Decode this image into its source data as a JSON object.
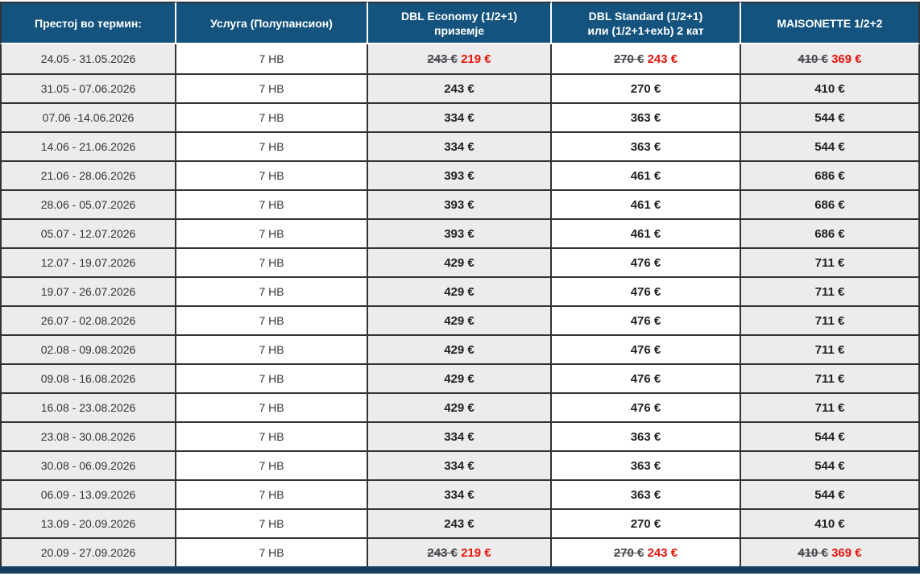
{
  "colors": {
    "header_bg": "#14537e",
    "header_text": "#ffffff",
    "col_alt_bg": "#ececec",
    "col_white_bg": "#ffffff",
    "border": "#333333",
    "date_text": "#333333",
    "price_text": "#222222",
    "old_price_text": "#45454d",
    "discount_price_text": "#e8140b",
    "bottom_bar": "#163e5e"
  },
  "table": {
    "header": {
      "col_term": "Престој во термин:",
      "col_service": "Услуга (Полупансион)",
      "col_economy_line1": "DBL Economy (1/2+1)",
      "col_economy_line2": "приземје",
      "col_standard_line1": "DBL Standard (1/2+1)",
      "col_standard_line2": "или (1/2+1+exb) 2 кат",
      "col_maisonette": "MAISONETTE  1/2+2"
    },
    "rows": [
      {
        "term": "24.05 - 31.05.2026",
        "service": "7 HB",
        "economy": {
          "old": "243 €",
          "new": "219 €"
        },
        "standard": {
          "old": "270 €",
          "new": "243 €"
        },
        "maisonette": {
          "old": "410 €",
          "new": "369 €"
        }
      },
      {
        "term": "31.05 - 07.06.2026",
        "service": "7 HB",
        "economy": "243 €",
        "standard": "270 €",
        "maisonette": "410 €"
      },
      {
        "term": "07.06 -14.06.2026",
        "service": "7 HB",
        "economy": "334 €",
        "standard": "363 €",
        "maisonette": "544 €"
      },
      {
        "term": "14.06 - 21.06.2026",
        "service": "7 HB",
        "economy": "334 €",
        "standard": "363 €",
        "maisonette": "544 €"
      },
      {
        "term": "21.06 - 28.06.2026",
        "service": "7 HB",
        "economy": "393 €",
        "standard": "461 €",
        "maisonette": "686 €"
      },
      {
        "term": "28.06 - 05.07.2026",
        "service": "7 HB",
        "economy": "393 €",
        "standard": "461 €",
        "maisonette": "686 €"
      },
      {
        "term": "05.07 - 12.07.2026",
        "service": "7 HB",
        "economy": "393 €",
        "standard": "461 €",
        "maisonette": "686 €"
      },
      {
        "term": "12.07 - 19.07.2026",
        "service": "7 HB",
        "economy": "429 €",
        "standard": "476 €",
        "maisonette": "711 €"
      },
      {
        "term": "19.07 - 26.07.2026",
        "service": "7 HB",
        "economy": "429 €",
        "standard": "476 €",
        "maisonette": "711 €"
      },
      {
        "term": "26.07 - 02.08.2026",
        "service": "7 HB",
        "economy": "429 €",
        "standard": "476 €",
        "maisonette": "711 €"
      },
      {
        "term": "02.08 - 09.08.2026",
        "service": "7 HB",
        "economy": "429 €",
        "standard": "476 €",
        "maisonette": "711 €"
      },
      {
        "term": "09.08 - 16.08.2026",
        "service": "7 HB",
        "economy": "429 €",
        "standard": "476 €",
        "maisonette": "711 €"
      },
      {
        "term": "16.08 - 23.08.2026",
        "service": "7 HB",
        "economy": "429 €",
        "standard": "476 €",
        "maisonette": "711 €"
      },
      {
        "term": "23.08 - 30.08.2026",
        "service": "7 HB",
        "economy": "334 €",
        "standard": "363 €",
        "maisonette": "544 €"
      },
      {
        "term": "30.08 - 06.09.2026",
        "service": "7 HB",
        "economy": "334 €",
        "standard": "363 €",
        "maisonette": "544 €"
      },
      {
        "term": "06.09 - 13.09.2026",
        "service": "7 HB",
        "economy": "334 €",
        "standard": "363 €",
        "maisonette": "544 €"
      },
      {
        "term": "13.09 - 20.09.2026",
        "service": "7 HB",
        "economy": "243 €",
        "standard": "270 €",
        "maisonette": "410 €"
      },
      {
        "term": "20.09 - 27.09.2026",
        "service": "7 HB",
        "economy": {
          "old": "243 €",
          "new": "219 €"
        },
        "standard": {
          "old": "270 €",
          "new": "243 €"
        },
        "maisonette": {
          "old": "410 €",
          "new": "369 €"
        }
      }
    ]
  }
}
